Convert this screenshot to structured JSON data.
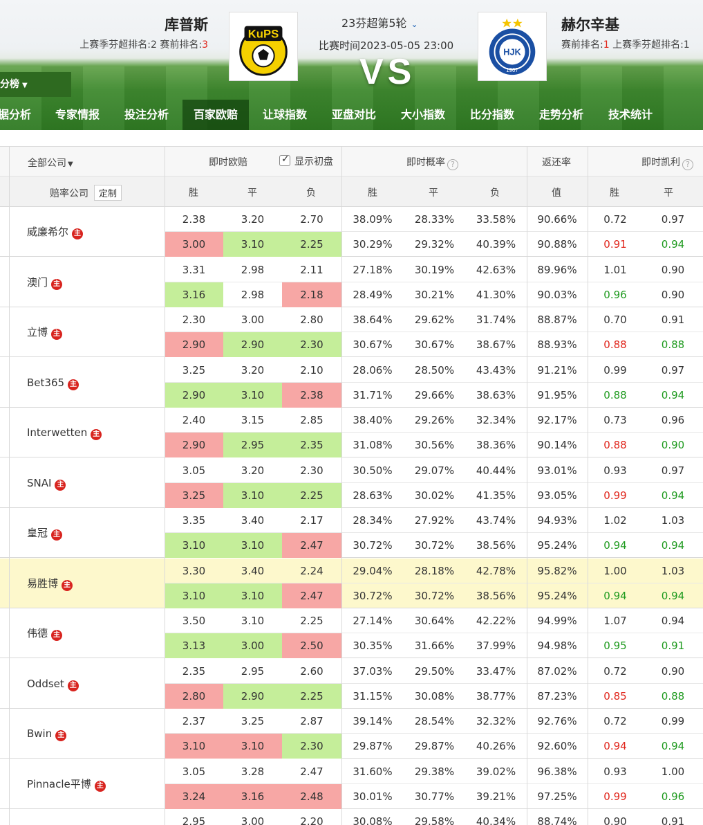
{
  "header": {
    "home_team": "库普斯",
    "away_team": "赫尔辛基",
    "round": "23芬超第5轮",
    "match_time": "比赛时间2023-05-05 23:00",
    "vs": "VS",
    "home_rank_prefix": "上赛季芬超排名:2  赛前排名:",
    "home_rank_value": "3",
    "away_rank_prefix": "赛前排名:",
    "away_rank_value": "1",
    "away_rank_suffix": "  上赛季芬超排名:1",
    "home_logo_text": "KuPS",
    "away_logo_text": "HJK",
    "away_logo_year": "1907",
    "standings_btn": "积分榜"
  },
  "nav": [
    "据分析",
    "专家情报",
    "投注分析",
    "百家欧赔",
    "让球指数",
    "亚盘对比",
    "大小指数",
    "比分指数",
    "走势分析",
    "技术统计"
  ],
  "nav_active_index": 3,
  "table_header": {
    "all_companies": "全部公司",
    "live_odds": "即时欧赔",
    "show_initial": "显示初盘",
    "live_prob": "即时概率",
    "return_rate": "返还率",
    "live_kelly": "即时凯利",
    "odds_company": "赔率公司",
    "custom": "定制",
    "win": "胜",
    "draw": "平",
    "lose": "负",
    "value": "值",
    "q": "?"
  },
  "crown_label": "主",
  "companies": [
    {
      "name": "威廉希尔",
      "r1": [
        "2.38",
        "3.20",
        "2.70",
        "38.09%",
        "28.33%",
        "33.58%",
        "90.66%",
        "0.72",
        "0.97"
      ],
      "r2": [
        "3.00",
        "3.10",
        "2.25",
        "30.29%",
        "29.32%",
        "40.39%",
        "90.88%",
        "0.91",
        "0.94"
      ],
      "bg": [
        "red",
        "green",
        "green"
      ],
      "kc": [
        "red",
        "green"
      ]
    },
    {
      "name": "澳门",
      "r1": [
        "3.31",
        "2.98",
        "2.11",
        "27.18%",
        "30.19%",
        "42.63%",
        "89.96%",
        "1.01",
        "0.90"
      ],
      "r2": [
        "3.16",
        "2.98",
        "2.18",
        "28.49%",
        "30.21%",
        "41.30%",
        "90.03%",
        "0.96",
        "0.90"
      ],
      "bg": [
        "green",
        "",
        "red"
      ],
      "kc": [
        "green",
        ""
      ]
    },
    {
      "name": "立博",
      "r1": [
        "2.30",
        "3.00",
        "2.80",
        "38.64%",
        "29.62%",
        "31.74%",
        "88.87%",
        "0.70",
        "0.91"
      ],
      "r2": [
        "2.90",
        "2.90",
        "2.30",
        "30.67%",
        "30.67%",
        "38.67%",
        "88.93%",
        "0.88",
        "0.88"
      ],
      "bg": [
        "red",
        "green",
        "green"
      ],
      "kc": [
        "red",
        "green"
      ]
    },
    {
      "name": "Bet365",
      "r1": [
        "3.25",
        "3.20",
        "2.10",
        "28.06%",
        "28.50%",
        "43.43%",
        "91.21%",
        "0.99",
        "0.97"
      ],
      "r2": [
        "2.90",
        "3.10",
        "2.38",
        "31.71%",
        "29.66%",
        "38.63%",
        "91.95%",
        "0.88",
        "0.94"
      ],
      "bg": [
        "green",
        "green",
        "red"
      ],
      "kc": [
        "green",
        "green"
      ]
    },
    {
      "name": "Interwetten",
      "r1": [
        "2.40",
        "3.15",
        "2.85",
        "38.40%",
        "29.26%",
        "32.34%",
        "92.17%",
        "0.73",
        "0.96"
      ],
      "r2": [
        "2.90",
        "2.95",
        "2.35",
        "31.08%",
        "30.56%",
        "38.36%",
        "90.14%",
        "0.88",
        "0.90"
      ],
      "bg": [
        "red",
        "green",
        "green"
      ],
      "kc": [
        "red",
        "green"
      ]
    },
    {
      "name": "SNAI",
      "r1": [
        "3.05",
        "3.20",
        "2.30",
        "30.50%",
        "29.07%",
        "40.44%",
        "93.01%",
        "0.93",
        "0.97"
      ],
      "r2": [
        "3.25",
        "3.10",
        "2.25",
        "28.63%",
        "30.02%",
        "41.35%",
        "93.05%",
        "0.99",
        "0.94"
      ],
      "bg": [
        "red",
        "green",
        "green"
      ],
      "kc": [
        "red",
        "green"
      ]
    },
    {
      "name": "皇冠",
      "r1": [
        "3.35",
        "3.40",
        "2.17",
        "28.34%",
        "27.92%",
        "43.74%",
        "94.93%",
        "1.02",
        "1.03"
      ],
      "r2": [
        "3.10",
        "3.10",
        "2.47",
        "30.72%",
        "30.72%",
        "38.56%",
        "95.24%",
        "0.94",
        "0.94"
      ],
      "bg": [
        "green",
        "green",
        "red"
      ],
      "kc": [
        "green",
        "green"
      ]
    },
    {
      "name": "易胜博",
      "r1": [
        "3.30",
        "3.40",
        "2.24",
        "29.04%",
        "28.18%",
        "42.78%",
        "95.82%",
        "1.00",
        "1.03"
      ],
      "r2": [
        "3.10",
        "3.10",
        "2.47",
        "30.72%",
        "30.72%",
        "38.56%",
        "95.24%",
        "0.94",
        "0.94"
      ],
      "bg": [
        "green",
        "green",
        "red"
      ],
      "kc": [
        "green",
        "green"
      ],
      "hl": true
    },
    {
      "name": "伟德",
      "r1": [
        "3.50",
        "3.10",
        "2.25",
        "27.14%",
        "30.64%",
        "42.22%",
        "94.99%",
        "1.07",
        "0.94"
      ],
      "r2": [
        "3.13",
        "3.00",
        "2.50",
        "30.35%",
        "31.66%",
        "37.99%",
        "94.98%",
        "0.95",
        "0.91"
      ],
      "bg": [
        "green",
        "green",
        "red"
      ],
      "kc": [
        "green",
        "green"
      ]
    },
    {
      "name": "Oddset",
      "r1": [
        "2.35",
        "2.95",
        "2.60",
        "37.03%",
        "29.50%",
        "33.47%",
        "87.02%",
        "0.72",
        "0.90"
      ],
      "r2": [
        "2.80",
        "2.90",
        "2.25",
        "31.15%",
        "30.08%",
        "38.77%",
        "87.23%",
        "0.85",
        "0.88"
      ],
      "bg": [
        "red",
        "green",
        "green"
      ],
      "kc": [
        "red",
        "green"
      ]
    },
    {
      "name": "Bwin",
      "r1": [
        "2.37",
        "3.25",
        "2.87",
        "39.14%",
        "28.54%",
        "32.32%",
        "92.76%",
        "0.72",
        "0.99"
      ],
      "r2": [
        "3.10",
        "3.10",
        "2.30",
        "29.87%",
        "29.87%",
        "40.26%",
        "92.60%",
        "0.94",
        "0.94"
      ],
      "bg": [
        "red",
        "red",
        "green"
      ],
      "kc": [
        "red",
        "green"
      ]
    },
    {
      "name": "Pinnacle平博",
      "r1": [
        "3.05",
        "3.28",
        "2.47",
        "31.60%",
        "29.38%",
        "39.02%",
        "96.38%",
        "0.93",
        "1.00"
      ],
      "r2": [
        "3.24",
        "3.16",
        "2.48",
        "30.01%",
        "30.77%",
        "39.21%",
        "97.25%",
        "0.99",
        "0.96"
      ],
      "bg": [
        "red",
        "red",
        "red"
      ],
      "kc": [
        "red",
        "green"
      ]
    },
    {
      "name": "",
      "r1": [
        "2.95",
        "3.00",
        "2.20",
        "30.08%",
        "29.58%",
        "40.34%",
        "88.74%",
        "0.90",
        "0.91"
      ],
      "r2": [
        "",
        "",
        "",
        "",
        "",
        "",
        "",
        "",
        ""
      ],
      "bg": [
        "",
        "",
        ""
      ],
      "kc": [
        "",
        ""
      ]
    }
  ],
  "colors": {
    "red_bg": "#f7a7a5",
    "green_bg": "#c5ee9a",
    "text_red": "#e0251b",
    "text_green": "#1e9a1e",
    "highlight_row": "#fdf8cc",
    "crown": "#d8241f"
  }
}
